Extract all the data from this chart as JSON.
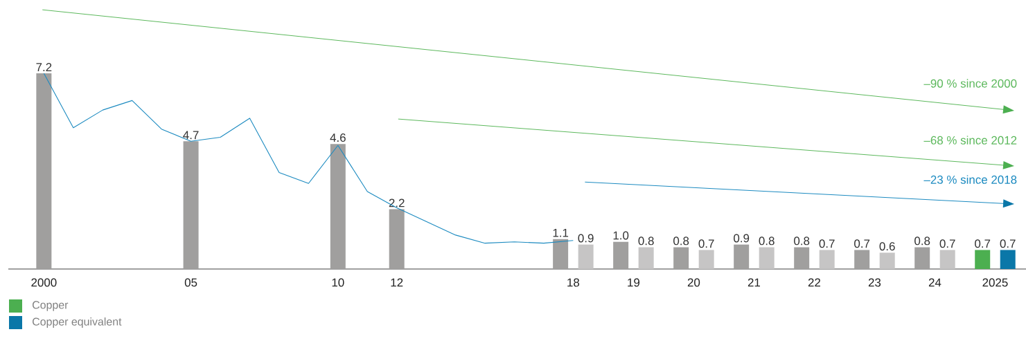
{
  "chart_data": {
    "type": "bar",
    "legend": "bottom",
    "grid": false,
    "categories": [
      "2000",
      null,
      null,
      null,
      null,
      "05",
      null,
      null,
      null,
      null,
      "10",
      null,
      "12",
      null,
      null,
      null,
      null,
      null,
      "18",
      "19",
      "20",
      "21",
      "22",
      "23",
      "24",
      "2025"
    ],
    "series": [
      {
        "name": "Copper",
        "color": "#4caf50",
        "values": [
          7.2,
          null,
          null,
          null,
          null,
          4.7,
          null,
          null,
          null,
          null,
          4.6,
          null,
          2.2,
          null,
          null,
          null,
          null,
          null,
          1.1,
          1.0,
          0.8,
          0.9,
          0.8,
          0.7,
          0.8,
          0.7
        ],
        "colors": [
          "#a09f9e",
          null,
          null,
          null,
          null,
          "#a09f9e",
          null,
          null,
          null,
          null,
          "#a09f9e",
          null,
          "#a09f9e",
          null,
          null,
          null,
          null,
          null,
          "#a09f9e",
          "#a09f9e",
          "#a09f9e",
          "#a09f9e",
          "#a09f9e",
          "#a09f9e",
          "#a09f9e",
          "#4caf50"
        ],
        "value_labels": [
          "7.2",
          null,
          null,
          null,
          null,
          "4.7",
          null,
          null,
          null,
          null,
          "4.6",
          null,
          "2.2",
          null,
          null,
          null,
          null,
          null,
          "1.1",
          "1.0",
          "0.8",
          "0.9",
          "0.8",
          "0.7",
          "0.8",
          "0.7"
        ]
      },
      {
        "name": "Copper equivalent",
        "color": "#0a77a8",
        "values": [
          null,
          null,
          null,
          null,
          null,
          null,
          null,
          null,
          null,
          null,
          null,
          null,
          null,
          null,
          null,
          null,
          null,
          null,
          0.9,
          0.8,
          0.7,
          0.8,
          0.7,
          0.6,
          0.7,
          0.7
        ],
        "colors": [
          null,
          null,
          null,
          null,
          null,
          null,
          null,
          null,
          null,
          null,
          null,
          null,
          null,
          null,
          null,
          null,
          null,
          null,
          "#c6c5c5",
          "#c6c5c5",
          "#c6c5c5",
          "#c6c5c5",
          "#c6c5c5",
          "#c6c5c5",
          "#c6c5c5",
          "#0a77a8"
        ],
        "value_labels": [
          null,
          null,
          null,
          null,
          null,
          null,
          null,
          null,
          null,
          null,
          null,
          null,
          null,
          null,
          null,
          null,
          null,
          null,
          "0.9",
          "0.8",
          "0.7",
          "0.8",
          "0.7",
          "0.6",
          "0.7",
          "0.7"
        ]
      },
      {
        "type": "line",
        "color": "#1b8ac0",
        "values": [
          7.2,
          5.2,
          5.85,
          6.2,
          5.15,
          4.7,
          4.85,
          5.55,
          3.55,
          3.15,
          4.55,
          2.85,
          2.25,
          1.75,
          1.25,
          0.95,
          1.0,
          0.95,
          1.05,
          null,
          null,
          null,
          null,
          null,
          null,
          null
        ]
      }
    ],
    "annotations": [
      "–90 % since 2000",
      "–68 % since 2012",
      "–23 % since 2018"
    ]
  }
}
